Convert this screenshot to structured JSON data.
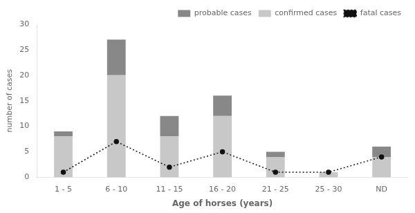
{
  "chart_data": {
    "type": "bar",
    "stacked": true,
    "categories": [
      "1 - 5",
      "6 - 10",
      "11 - 15",
      "16 - 20",
      "21 - 25",
      "25 - 30",
      "ND"
    ],
    "xlabel": "Age of horses (years)",
    "ylabel": "number of cases",
    "ylim": [
      0,
      30
    ],
    "yticks": [
      0,
      5,
      10,
      15,
      20,
      25,
      30
    ],
    "grid": false,
    "legend": "upper right",
    "series": [
      {
        "name": "confirmed cases",
        "color": "#c8c8c8",
        "values": [
          8,
          20,
          8,
          12,
          4,
          1,
          4
        ]
      },
      {
        "name": "probable cases",
        "color": "#888888",
        "values": [
          1,
          7,
          4,
          4,
          1,
          0,
          2
        ]
      },
      {
        "name": "fatal cases",
        "type": "line",
        "color": "#111111",
        "line_style": "dotted",
        "marker": "circle",
        "values": [
          1,
          7,
          2,
          5,
          1,
          1,
          4
        ]
      }
    ]
  }
}
